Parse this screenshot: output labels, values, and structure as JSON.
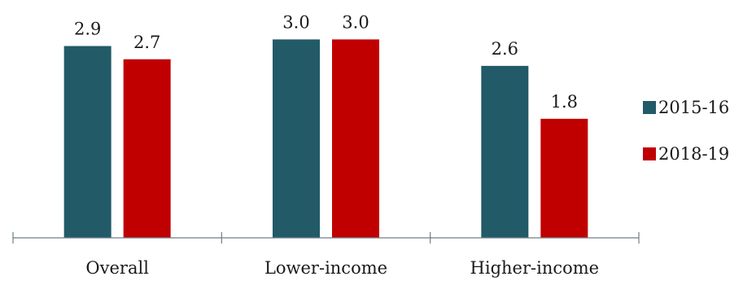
{
  "chart_data": {
    "type": "bar",
    "categories": [
      "Overall",
      "Lower-income",
      "Higher-income"
    ],
    "series": [
      {
        "name": "2015-16",
        "values": [
          2.9,
          3.0,
          2.6
        ],
        "color": "#225a68"
      },
      {
        "name": "2018-19",
        "values": [
          2.7,
          3.0,
          1.8
        ],
        "color": "#c00000"
      }
    ],
    "value_labels": {
      "2015-16": [
        "2.9",
        "3.0",
        "2.6"
      ],
      "2018-19": [
        "2.7",
        "3.0",
        "1.8"
      ]
    },
    "ylim": [
      0,
      3.0
    ],
    "grid": false,
    "legend": "right",
    "title": "",
    "xlabel": "",
    "ylabel": ""
  }
}
